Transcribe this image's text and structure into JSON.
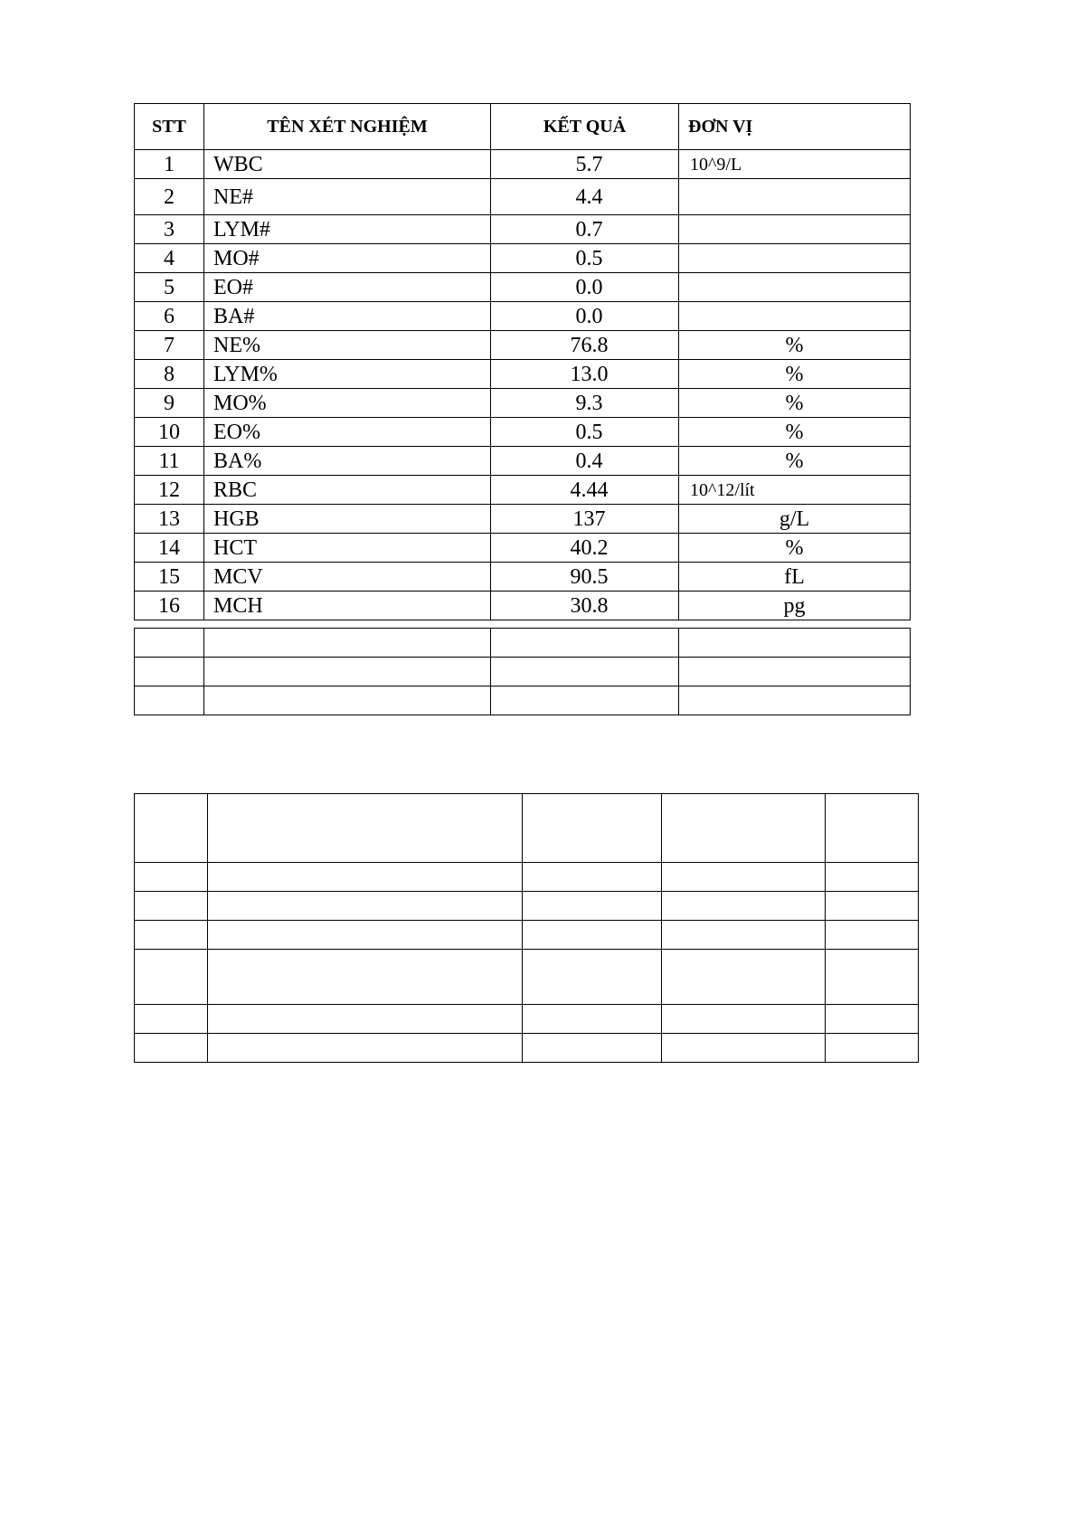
{
  "results_table": {
    "headers": [
      "STT",
      "TÊN XÉT NGHIỆM",
      "KẾT QUẢ",
      "ĐƠN VỊ"
    ],
    "rows": [
      {
        "stt": "1",
        "name": "WBC",
        "result": "5.7",
        "unit": "10^9/L"
      },
      {
        "stt": "2",
        "name": "NE#",
        "result": "4.4",
        "unit": ""
      },
      {
        "stt": "3",
        "name": "LYM#",
        "result": "0.7",
        "unit": ""
      },
      {
        "stt": "4",
        "name": "MO#",
        "result": "0.5",
        "unit": ""
      },
      {
        "stt": "5",
        "name": "EO#",
        "result": "0.0",
        "unit": ""
      },
      {
        "stt": "6",
        "name": "BA#",
        "result": "0.0",
        "unit": ""
      },
      {
        "stt": "7",
        "name": "NE%",
        "result": "76.8",
        "unit": "%"
      },
      {
        "stt": "8",
        "name": "LYM%",
        "result": "13.0",
        "unit": "%"
      },
      {
        "stt": "9",
        "name": "MO%",
        "result": "9.3",
        "unit": "%"
      },
      {
        "stt": "10",
        "name": "EO%",
        "result": "0.5",
        "unit": "%"
      },
      {
        "stt": "11",
        "name": "BA%",
        "result": "0.4",
        "unit": "%"
      },
      {
        "stt": "12",
        "name": "RBC",
        "result": "4.44",
        "unit": "10^12/lít"
      },
      {
        "stt": "13",
        "name": "HGB",
        "result": "137",
        "unit": "g/L"
      },
      {
        "stt": "14",
        "name": "HCT",
        "result": "40.2",
        "unit": "%"
      },
      {
        "stt": "15",
        "name": "MCV",
        "result": "90.5",
        "unit": "fL"
      },
      {
        "stt": "16",
        "name": "MCH",
        "result": "30.8",
        "unit": "pg"
      }
    ]
  }
}
